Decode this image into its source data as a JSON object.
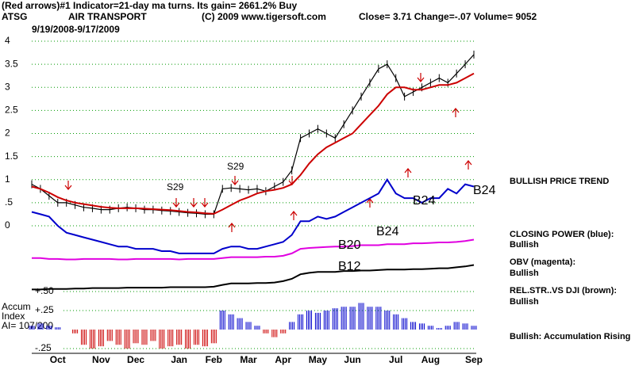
{
  "chart_data": {
    "type": "stock",
    "header": [
      "(Red arrows)#1 Indicator=21-day ma turns. Its gain= 2661.2% Buy",
      "ATSG",
      "AIR TRANSPORT",
      "(C) 2009 www.tigersoft.com",
      "Close= 3.71 Change=-.07 Volume= 9052"
    ],
    "date_range": "9/19/2008-9/17/2009",
    "categories": [
      null,
      null,
      null,
      "Oct",
      null,
      null,
      null,
      null,
      "Nov",
      null,
      null,
      null,
      "Dec",
      null,
      null,
      null,
      null,
      "Jan",
      null,
      null,
      null,
      "Feb",
      null,
      null,
      null,
      "Mar",
      null,
      null,
      null,
      "Apr",
      null,
      null,
      null,
      "May",
      null,
      null,
      null,
      "Jun",
      null,
      null,
      null,
      null,
      "Jul",
      null,
      null,
      null,
      "Aug",
      null,
      null,
      null,
      null,
      "Sep"
    ],
    "ylim": [
      -1.5,
      4.1
    ],
    "yticks": [
      0,
      {
        "value": 0.5,
        "label": ".5"
      },
      1,
      1.5,
      2,
      2.5,
      3,
      3.5,
      4
    ],
    "grid": true,
    "series": [
      {
        "name": "Price",
        "color": "#000000",
        "values": [
          0.9,
          0.8,
          0.65,
          0.5,
          0.5,
          0.45,
          0.4,
          0.38,
          0.35,
          0.35,
          0.38,
          0.4,
          0.38,
          0.35,
          0.35,
          0.33,
          0.32,
          0.3,
          0.28,
          0.27,
          0.25,
          0.25,
          0.8,
          0.82,
          0.8,
          0.78,
          0.8,
          0.75,
          0.85,
          0.95,
          1.2,
          1.9,
          2.0,
          2.1,
          2.0,
          1.9,
          2.2,
          2.5,
          2.8,
          3.1,
          3.4,
          3.5,
          3.2,
          2.8,
          2.9,
          3.0,
          3.1,
          3.2,
          3.1,
          3.3,
          3.5,
          3.71
        ]
      },
      {
        "name": "21-day ma",
        "color": "#cc0000",
        "values": [
          0.85,
          0.8,
          0.72,
          0.62,
          0.55,
          0.5,
          0.47,
          0.44,
          0.41,
          0.39,
          0.38,
          0.38,
          0.38,
          0.37,
          0.36,
          0.35,
          0.34,
          0.32,
          0.3,
          0.29,
          0.27,
          0.26,
          0.35,
          0.45,
          0.55,
          0.62,
          0.7,
          0.75,
          0.78,
          0.82,
          0.9,
          1.1,
          1.35,
          1.55,
          1.7,
          1.8,
          1.9,
          2.0,
          2.2,
          2.4,
          2.6,
          2.85,
          3.0,
          3.0,
          2.95,
          2.95,
          3.0,
          3.05,
          3.05,
          3.1,
          3.2,
          3.3
        ]
      },
      {
        "name": "CLOSING POWER (blue)",
        "color": "#0000cc",
        "values": [
          0.3,
          0.25,
          0.2,
          0.0,
          -0.15,
          -0.2,
          -0.25,
          -0.3,
          -0.35,
          -0.4,
          -0.45,
          -0.45,
          -0.5,
          -0.5,
          -0.5,
          -0.55,
          -0.55,
          -0.6,
          -0.6,
          -0.6,
          -0.6,
          -0.6,
          -0.5,
          -0.45,
          -0.45,
          -0.5,
          -0.5,
          -0.45,
          -0.4,
          -0.35,
          -0.2,
          0.1,
          0.1,
          0.2,
          0.15,
          0.2,
          0.3,
          0.4,
          0.5,
          0.6,
          0.7,
          1.0,
          0.7,
          0.6,
          0.6,
          0.5,
          0.6,
          0.6,
          0.8,
          0.7,
          0.9,
          0.85
        ]
      },
      {
        "name": "OBV (magenta)",
        "color": "#e000e0",
        "values": [
          -0.7,
          -0.7,
          -0.72,
          -0.72,
          -0.73,
          -0.73,
          -0.72,
          -0.72,
          -0.72,
          -0.72,
          -0.73,
          -0.73,
          -0.72,
          -0.72,
          -0.72,
          -0.72,
          -0.72,
          -0.73,
          -0.72,
          -0.72,
          -0.72,
          -0.72,
          -0.7,
          -0.68,
          -0.68,
          -0.68,
          -0.68,
          -0.67,
          -0.67,
          -0.65,
          -0.6,
          -0.5,
          -0.48,
          -0.47,
          -0.46,
          -0.45,
          -0.45,
          -0.44,
          -0.42,
          -0.42,
          -0.42,
          -0.4,
          -0.4,
          -0.4,
          -0.38,
          -0.38,
          -0.37,
          -0.36,
          -0.36,
          -0.35,
          -0.33,
          -0.3
        ]
      },
      {
        "name": "REL.STR..VS DJI (brown)",
        "color": "#000000",
        "values": [
          -1.38,
          -1.38,
          -1.37,
          -1.37,
          -1.37,
          -1.36,
          -1.36,
          -1.35,
          -1.35,
          -1.35,
          -1.35,
          -1.34,
          -1.34,
          -1.34,
          -1.34,
          -1.34,
          -1.33,
          -1.33,
          -1.33,
          -1.33,
          -1.33,
          -1.32,
          -1.28,
          -1.25,
          -1.25,
          -1.25,
          -1.24,
          -1.24,
          -1.23,
          -1.2,
          -1.15,
          -1.05,
          -1.02,
          -1.0,
          -1.0,
          -1.0,
          -0.98,
          -0.98,
          -0.97,
          -0.97,
          -0.96,
          -0.95,
          -0.95,
          -0.95,
          -0.94,
          -0.94,
          -0.93,
          -0.92,
          -0.92,
          -0.9,
          -0.88,
          -0.85
        ]
      }
    ],
    "accum": {
      "label": [
        "Accum",
        "Index",
        "AI= 107/200"
      ],
      "color_pos": "#0000cc",
      "color_neg": "#cc0000",
      "ylim": [
        -0.45,
        0.5
      ],
      "yticks": [
        {
          "value": 0.5,
          "label": "+.50"
        },
        {
          "value": 0.25,
          "label": "+.25"
        },
        {
          "value": -0.25,
          "label": "-.25"
        }
      ],
      "values": [
        0.05,
        0.08,
        0.05,
        0.03,
        0.0,
        -0.05,
        -0.2,
        -0.25,
        -0.22,
        -0.15,
        -0.2,
        -0.25,
        -0.18,
        -0.2,
        -0.15,
        -0.25,
        -0.22,
        -0.2,
        -0.25,
        -0.2,
        -0.22,
        -0.18,
        0.25,
        0.2,
        0.15,
        0.1,
        0.05,
        -0.05,
        -0.1,
        -0.05,
        0.1,
        0.2,
        0.25,
        0.22,
        0.25,
        0.28,
        0.3,
        0.3,
        0.35,
        0.3,
        0.3,
        0.25,
        0.2,
        0.15,
        0.1,
        0.08,
        0.05,
        0.02,
        0.05,
        0.1,
        0.08,
        0.05
      ]
    },
    "annotations": [
      "S29",
      "S29",
      "B24",
      "B24",
      "B24",
      "B20",
      "B12"
    ],
    "side_notes": [
      "BULLISH PRICE TREND",
      "CLOSING POWER (blue):",
      "Bullish",
      "OBV (magenta):",
      "Bullish",
      "REL.STR..VS DJI (brown):",
      "Bullish",
      "Bullish: Accumulation Rising"
    ]
  }
}
